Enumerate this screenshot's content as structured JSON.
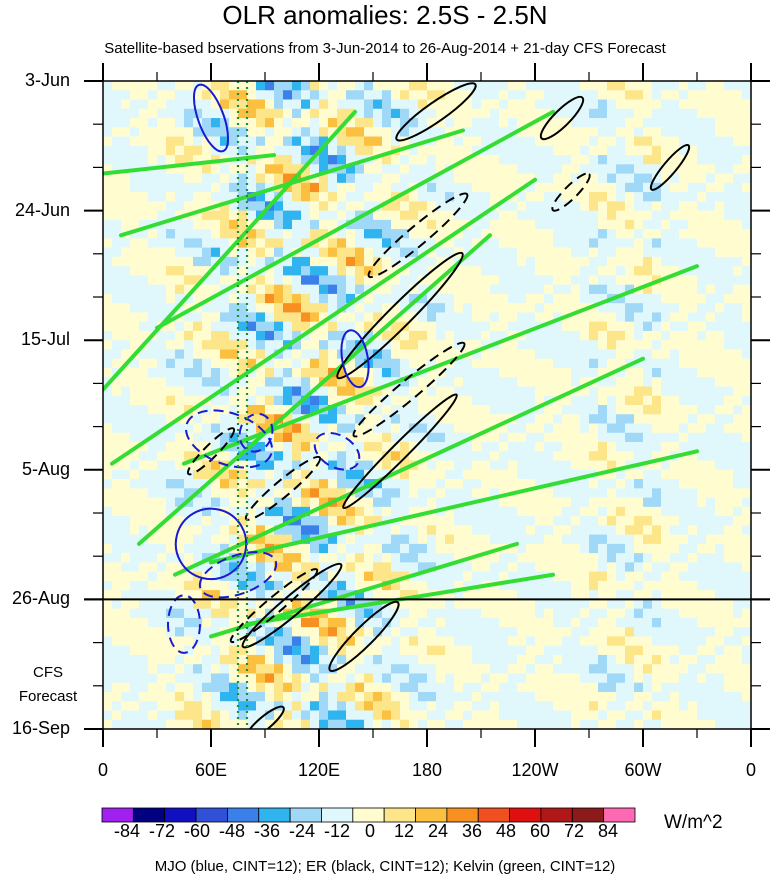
{
  "chart_data": {
    "type": "heatmap",
    "title": "OLR anomalies: 2.5S - 2.5N",
    "subtitle": "Satellite-based bservations from 3-Jun-2014 to 26-Aug-2014 + 21-day CFS Forecast",
    "y_tick_labels": [
      "3-Jun",
      "24-Jun",
      "15-Jul",
      "5-Aug",
      "26-Aug",
      "16-Sep"
    ],
    "x_tick_labels": [
      "0",
      "60E",
      "120E",
      "180",
      "120W",
      "60W",
      "0"
    ],
    "x_range_lon": [
      0,
      360
    ],
    "date_range": [
      "3-Jun-2014",
      "16-Sep-2014"
    ],
    "observation_end": "26-Aug",
    "forecast_label_line1": "CFS",
    "forecast_label_line2": "Forecast",
    "colorbar": {
      "labels": [
        "-84",
        "-72",
        "-60",
        "-48",
        "-36",
        "-24",
        "-12",
        "0",
        "12",
        "24",
        "36",
        "48",
        "60",
        "72",
        "84"
      ],
      "unit": "W/m^2",
      "colors": [
        "#a020f0",
        "#000080",
        "#1010c0",
        "#3050d8",
        "#3a80e8",
        "#30b4f0",
        "#a0d8f8",
        "#e0f8fc",
        "#fffcd0",
        "#fde68a",
        "#fbc040",
        "#f79020",
        "#f05020",
        "#e01010",
        "#b01818",
        "#8b1a1a",
        "#ff69b4"
      ]
    },
    "footnote": "MJO (blue, CINT=12); ER (black, CINT=12); Kelvin (green, CINT=12)",
    "series": [
      {
        "name": "MJO",
        "color": "#1a1ad0"
      },
      {
        "name": "ER",
        "color": "#000000"
      },
      {
        "name": "Kelvin",
        "color": "#33dd33"
      }
    ],
    "reference_longitude_lines": [
      75,
      80
    ]
  }
}
